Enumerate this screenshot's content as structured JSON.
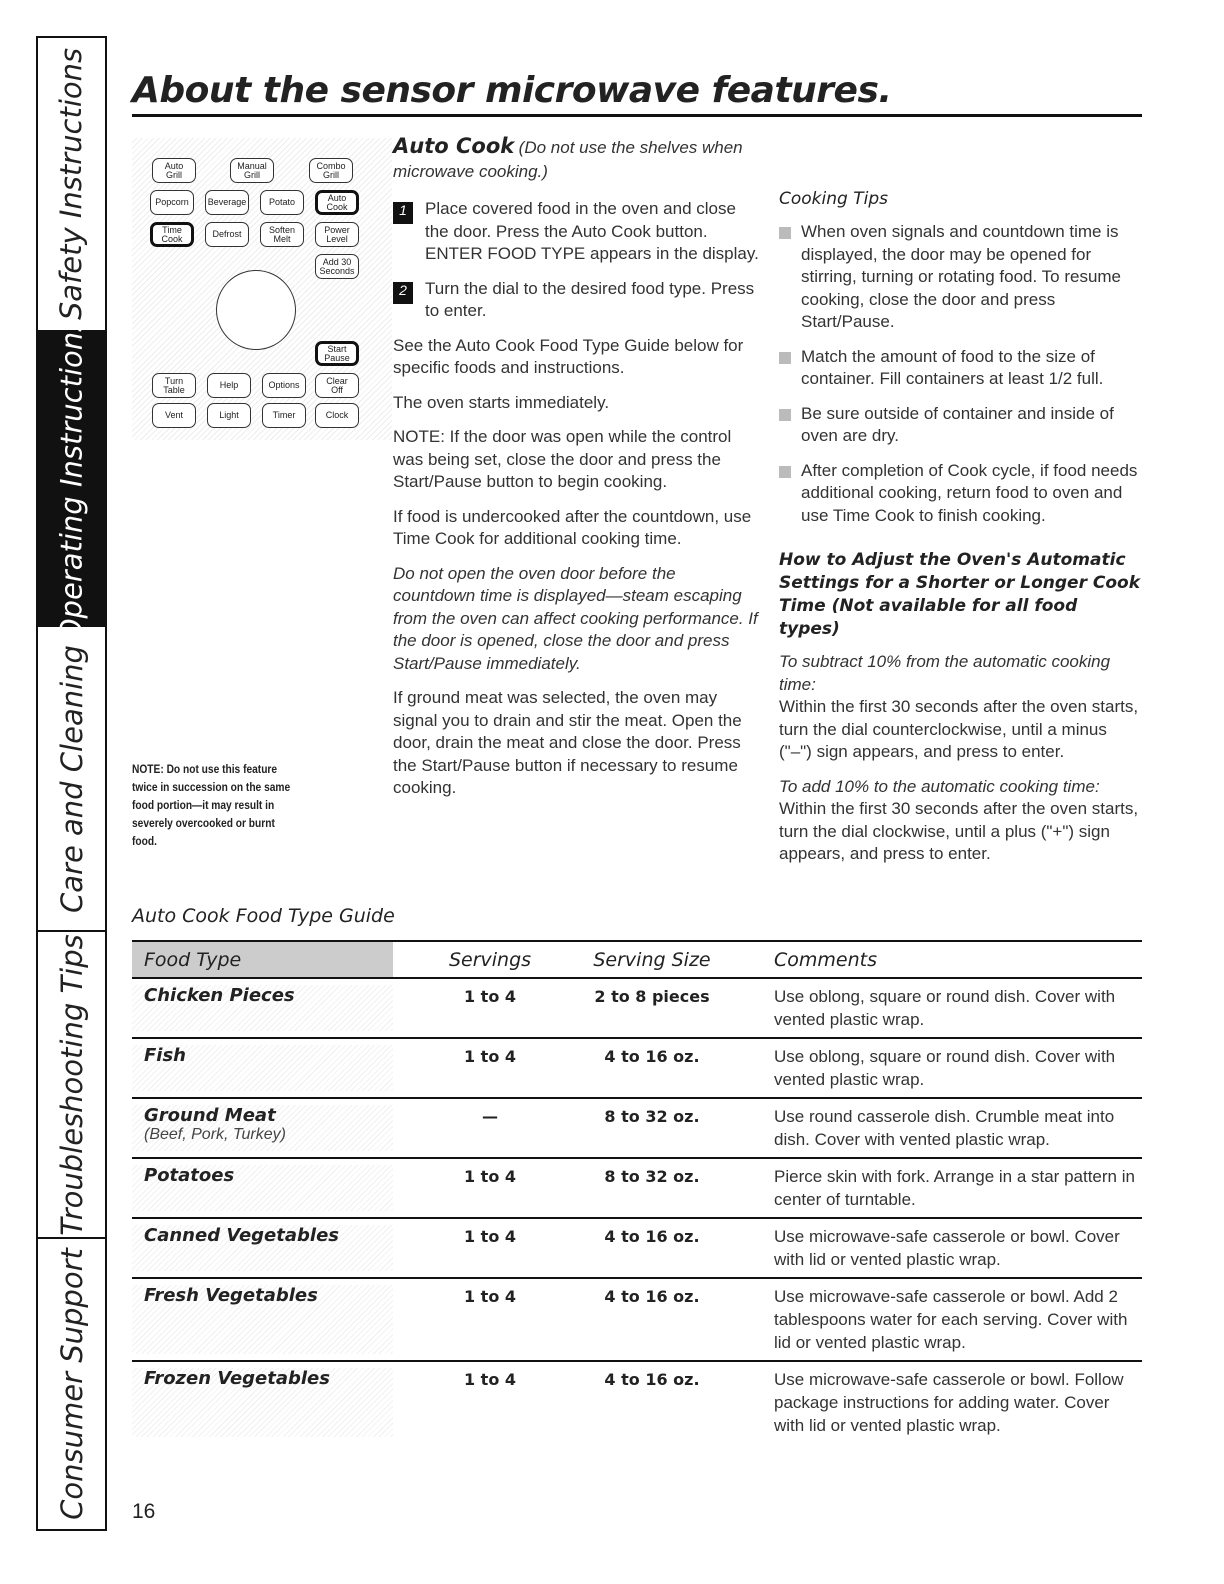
{
  "sidebar": {
    "tabs": [
      {
        "label": "Safety Instructions",
        "active": false
      },
      {
        "label": "Operating Instructions",
        "active": true
      },
      {
        "label": "Care and Cleaning",
        "active": false
      },
      {
        "label": "Troubleshooting Tips",
        "active": false
      },
      {
        "label": "Consumer Support",
        "active": false
      }
    ]
  },
  "title": "About the sensor microwave features.",
  "panel": {
    "buttons": [
      "Auto\nGrill",
      "Manual\nGrill",
      "Combo\nGrill",
      "Popcorn",
      "Beverage",
      "Potato",
      "Auto\nCook",
      "Time\nCook",
      "Defrost",
      "Soften\nMelt",
      "Power\nLevel",
      "Add 30\nSeconds",
      "Start\nPause",
      "Turn\nTable",
      "Help",
      "Options",
      "Clear\nOff",
      "Vent",
      "Light",
      "Timer",
      "Clock"
    ]
  },
  "note": "NOTE: Do not use this feature twice in succession on the same food portion—it may result in severely overcooked or burnt food.",
  "auto_cook": {
    "heading": "Auto Cook",
    "subheading": "(Do not use the shelves when microwave cooking.)",
    "step1_num": "1",
    "step1": "Place covered food in the oven and close the door. Press the Auto Cook button. ENTER FOOD TYPE appears in the display.",
    "step2_num": "2",
    "step2": "Turn the dial to the desired food type. Press to enter.",
    "p1": "See the Auto Cook Food Type Guide below for specific foods and instructions.",
    "p2": "The oven starts immediately.",
    "p3": "NOTE: If the door was open while the control was being set, close the door and press the Start/Pause button to begin cooking.",
    "p4": "If food is undercooked after the countdown, use Time Cook for additional cooking time.",
    "p5": "Do not open the oven door before the countdown time is displayed—steam escaping from the oven can affect cooking performance. If the door is opened, close the door and press Start/Pause immediately.",
    "p6": "If ground meat was selected, the oven may signal you to drain and stir the meat. Open the door, drain the meat and close the door. Press the Start/Pause button if necessary to resume cooking."
  },
  "tips": {
    "heading": "Cooking Tips",
    "items": [
      "When oven signals and countdown time is displayed, the door may be opened for stirring, turning or rotating food. To resume cooking, close the door and press Start/Pause.",
      "Match the amount of food to the size of container. Fill containers at least 1/2 full.",
      "Be sure outside of container and inside of oven are dry.",
      "After completion of Cook cycle, if food needs additional cooking, return food to oven and use Time Cook to finish cooking."
    ]
  },
  "adjust": {
    "heading": "How to Adjust the Oven's Automatic Settings for a Shorter or Longer Cook Time (Not available for all food types)",
    "sub1": "To subtract 10% from the automatic cooking time:",
    "text1": "Within the first 30 seconds after the oven starts, turn the dial counterclockwise, until a minus (\"–\") sign appears, and press to enter.",
    "sub2": "To add 10% to the automatic cooking time:",
    "text2": "Within the first 30 seconds after the oven starts, turn the dial clockwise, until a plus (\"+\") sign appears, and press to enter."
  },
  "guide": {
    "title": "Auto Cook Food Type Guide",
    "headers": [
      "Food Type",
      "Servings",
      "Serving Size",
      "Comments"
    ],
    "rows": [
      {
        "food": "Chicken Pieces",
        "sub": "",
        "servings": "1 to 4",
        "size": "2 to 8 pieces",
        "comments": "Use oblong, square or round dish. Cover with vented plastic wrap."
      },
      {
        "food": "Fish",
        "sub": "",
        "servings": "1 to 4",
        "size": "4 to 16 oz.",
        "comments": "Use oblong, square or round dish. Cover with vented plastic wrap."
      },
      {
        "food": "Ground Meat",
        "sub": "(Beef, Pork, Turkey)",
        "servings": "—",
        "size": "8 to 32 oz.",
        "comments": "Use round casserole dish. Crumble meat into dish. Cover with vented plastic wrap."
      },
      {
        "food": "Potatoes",
        "sub": "",
        "servings": "1 to 4",
        "size": "8 to 32 oz.",
        "comments": "Pierce skin with fork. Arrange in a star pattern in center of turntable."
      },
      {
        "food": "Canned Vegetables",
        "sub": "",
        "servings": "1 to 4",
        "size": "4 to 16 oz.",
        "comments": "Use microwave-safe casserole or bowl. Cover with lid or vented plastic wrap."
      },
      {
        "food": "Fresh Vegetables",
        "sub": "",
        "servings": "1 to 4",
        "size": "4 to 16 oz.",
        "comments": "Use microwave-safe casserole or bowl. Add 2 tablespoons water for each serving. Cover with lid or vented plastic wrap."
      },
      {
        "food": "Frozen Vegetables",
        "sub": "",
        "servings": "1 to 4",
        "size": "4 to 16 oz.",
        "comments": "Use microwave-safe casserole or bowl. Follow package instructions for adding water. Cover with lid or vented plastic wrap."
      }
    ]
  },
  "page_number": "16"
}
